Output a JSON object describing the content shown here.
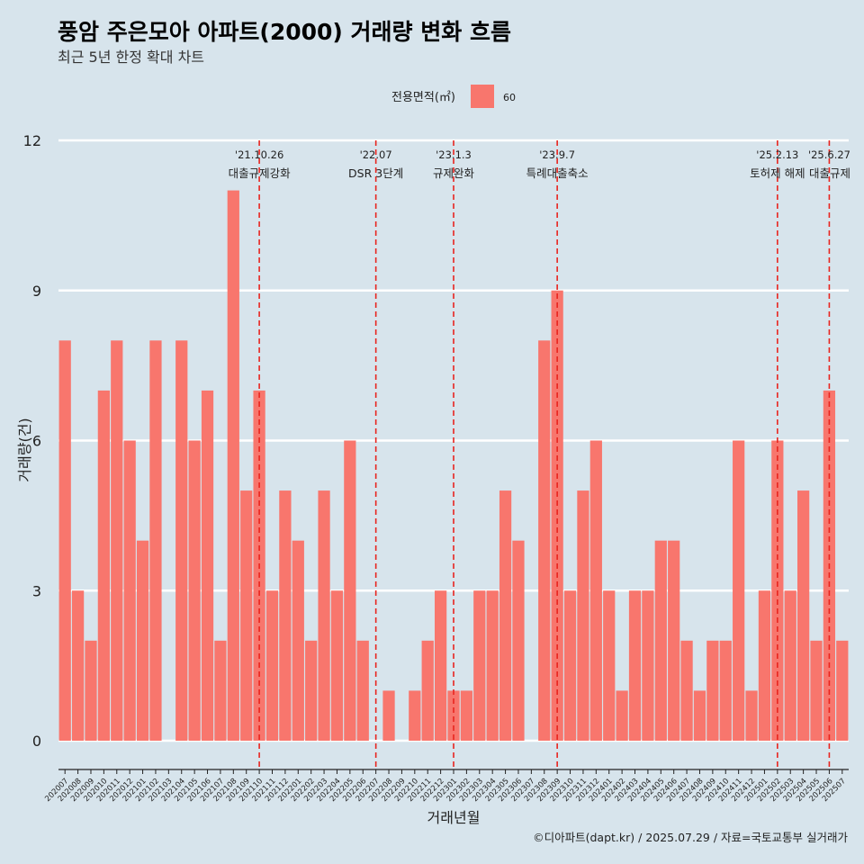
{
  "header": {
    "title": "풍암 주은모아 아파트(2000) 거래량 변화 흐름",
    "subtitle": "최근 5년 한정 확대 차트"
  },
  "legend": {
    "title": "전용면적(㎡)",
    "items": [
      {
        "label": "60",
        "color": "#f8766d"
      }
    ]
  },
  "caption": "©디아파트(dapt.kr) / 2025.07.29 / 자료=국토교통부 실거래가",
  "colors": {
    "background": "#d7e4ec",
    "bar": "#f8766d",
    "event_line": "#e8251f",
    "grid": "#ffffff"
  },
  "chart_data": {
    "type": "bar",
    "xlabel": "거래년월",
    "ylabel": "거래량(건)",
    "ylim": [
      0,
      12
    ],
    "yticks": [
      0,
      3,
      6,
      9,
      12
    ],
    "grid": "horizontal",
    "legend_position": "top",
    "categories": [
      "202007",
      "202008",
      "202009",
      "202010",
      "202011",
      "202012",
      "202101",
      "202102",
      "202103",
      "202104",
      "202105",
      "202106",
      "202107",
      "202108",
      "202109",
      "202110",
      "202111",
      "202112",
      "202201",
      "202202",
      "202203",
      "202204",
      "202205",
      "202206",
      "202207",
      "202208",
      "202209",
      "202210",
      "202211",
      "202212",
      "202301",
      "202302",
      "202303",
      "202304",
      "202305",
      "202306",
      "202307",
      "202308",
      "202309",
      "202310",
      "202311",
      "202312",
      "202401",
      "202402",
      "202403",
      "202404",
      "202405",
      "202406",
      "202407",
      "202408",
      "202409",
      "202410",
      "202411",
      "202412",
      "202501",
      "202502",
      "202503",
      "202504",
      "202505",
      "202506",
      "202507"
    ],
    "series": [
      {
        "name": "60",
        "values": [
          8,
          3,
          2,
          7,
          8,
          6,
          4,
          8,
          0,
          8,
          6,
          7,
          2,
          11,
          5,
          7,
          3,
          5,
          4,
          2,
          5,
          3,
          6,
          2,
          0,
          1,
          0,
          1,
          2,
          3,
          1,
          1,
          3,
          3,
          5,
          4,
          0,
          8,
          9,
          3,
          5,
          6,
          3,
          1,
          3,
          3,
          4,
          4,
          2,
          1,
          2,
          2,
          6,
          1,
          3,
          6,
          3,
          5,
          2,
          7,
          2
        ]
      }
    ],
    "events": [
      {
        "date": "'21.10.26",
        "name": "대출규제강화",
        "category": "202110"
      },
      {
        "date": "'22.07",
        "name": "DSR 3단계",
        "category": "202207"
      },
      {
        "date": "'23.1.3",
        "name": "규제완화",
        "category": "202301"
      },
      {
        "date": "'23.9.7",
        "name": "특례대출축소",
        "category": "202309"
      },
      {
        "date": "'25.2.13",
        "name": "토허제 해제",
        "category": "202502"
      },
      {
        "date": "'25.6.27",
        "name": "대출규제",
        "category": "202506"
      }
    ]
  }
}
